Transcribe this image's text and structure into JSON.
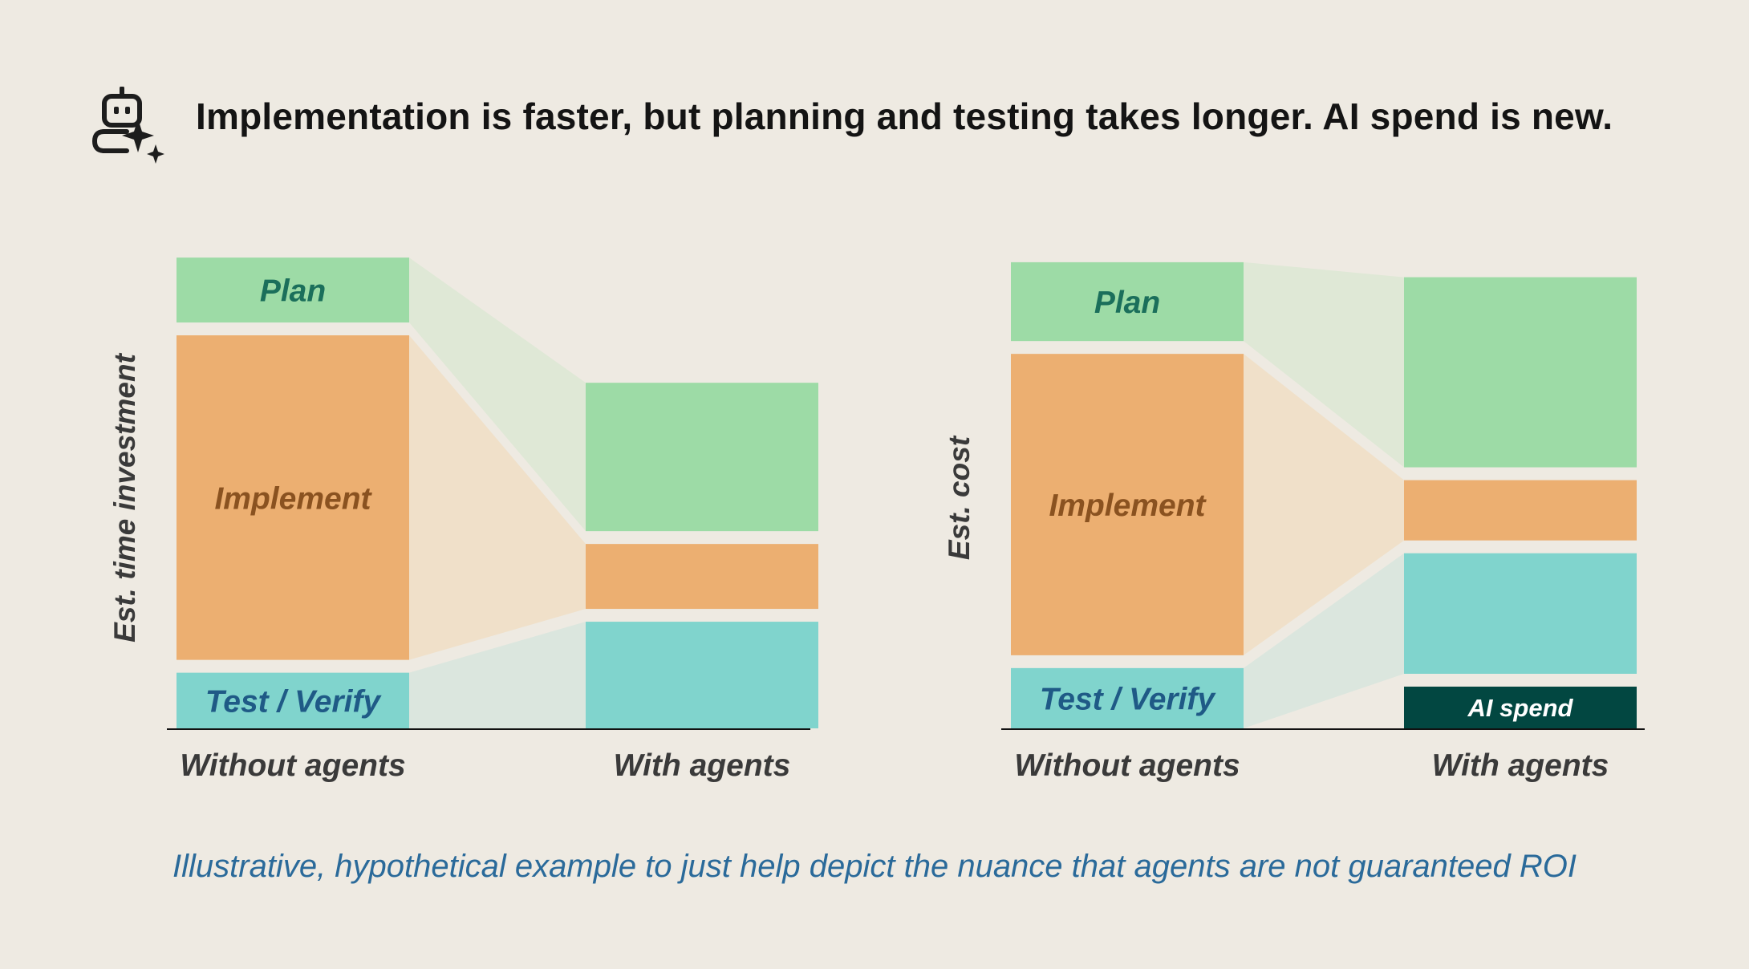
{
  "title": "Implementation is faster, but planning and testing takes longer. AI spend is new.",
  "footnote": "Illustrative, hypothetical example to just help depict the nuance that agents are not guaranteed ROI",
  "icon": "robot-sparkle-icon",
  "colors": {
    "background": "#eeeae2",
    "plan": "#9ddba6",
    "implement": "#ecaf71",
    "test": "#80d4cd",
    "ai_spend": "#024741",
    "plan_link": "#dfe8d6",
    "implement_link": "#f0e0c9",
    "test_link": "#dbe6de",
    "plan_label": "#1b6f5b",
    "implement_label": "#8a5220",
    "test_label": "#1f5a86",
    "ai_label": "#ffffff",
    "axis_label": "#3a3a3a"
  },
  "chart_data": [
    {
      "type": "bar",
      "stacked": true,
      "ylabel": "Est. time investment",
      "categories": [
        "Without agents",
        "With agents"
      ],
      "ylim": [
        0,
        100
      ],
      "series": [
        {
          "name": "Test / Verify",
          "key": "test",
          "values": [
            12,
            23
          ]
        },
        {
          "name": "Implement",
          "key": "implement",
          "values": [
            70,
            14
          ]
        },
        {
          "name": "Plan",
          "key": "plan",
          "values": [
            14,
            32
          ]
        }
      ]
    },
    {
      "type": "bar",
      "stacked": true,
      "ylabel": "Est. cost",
      "categories": [
        "Without agents",
        "With agents"
      ],
      "ylim": [
        0,
        100
      ],
      "series": [
        {
          "name": "AI spend",
          "key": "ai",
          "values": [
            0,
            9
          ]
        },
        {
          "name": "Test / Verify",
          "key": "test",
          "values": [
            13,
            26
          ]
        },
        {
          "name": "Implement",
          "key": "implement",
          "values": [
            65,
            13
          ]
        },
        {
          "name": "Plan",
          "key": "plan",
          "values": [
            17,
            41
          ]
        }
      ]
    }
  ]
}
